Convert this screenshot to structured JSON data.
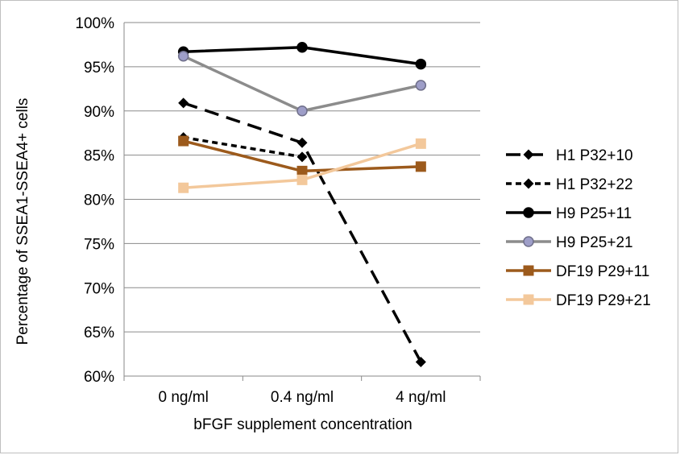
{
  "chart_data": {
    "type": "line",
    "title": "",
    "xlabel": "bFGF supplement concentration",
    "ylabel": "Percentage of SSEA1-SSEA4+ cells",
    "categories": [
      "0 ng/ml",
      "0.4 ng/ml",
      "4 ng/ml"
    ],
    "ylim": [
      60,
      100
    ],
    "yticks": [
      "60%",
      "65%",
      "70%",
      "75%",
      "80%",
      "85%",
      "90%",
      "95%",
      "100%"
    ],
    "grid": "horizontal",
    "legend_position": "right",
    "series": [
      {
        "name": "H1 P32+10",
        "values": [
          90.9,
          86.4,
          61.6
        ],
        "color": "#000000",
        "marker": "diamond",
        "dash": "long-dash"
      },
      {
        "name": "H1 P32+22",
        "values": [
          87.0,
          84.8,
          null
        ],
        "color": "#000000",
        "marker": "diamond",
        "dash": "short-dash"
      },
      {
        "name": "H9 P25+11",
        "values": [
          96.7,
          97.2,
          95.3
        ],
        "color": "#000000",
        "marker": "circle",
        "dash": "solid"
      },
      {
        "name": "H9 P25+21",
        "values": [
          96.2,
          90.0,
          92.9
        ],
        "color": "#8c8c8c",
        "marker": "circle",
        "dash": "solid"
      },
      {
        "name": "DF19 P29+11",
        "values": [
          86.6,
          83.2,
          83.7
        ],
        "color": "#9c5a1c",
        "marker": "square",
        "dash": "solid"
      },
      {
        "name": "DF19 P29+21",
        "values": [
          81.3,
          82.2,
          86.3
        ],
        "color": "#f3c89b",
        "marker": "square",
        "dash": "solid"
      }
    ]
  }
}
